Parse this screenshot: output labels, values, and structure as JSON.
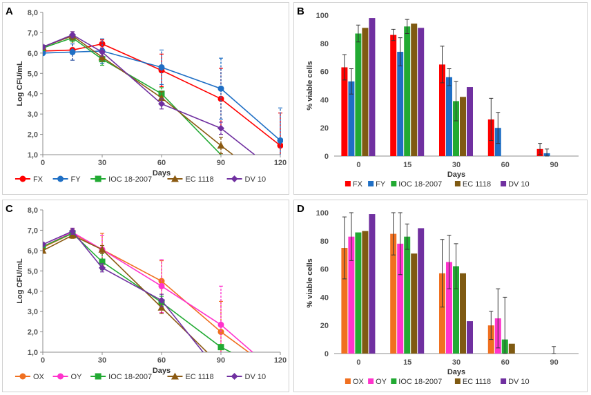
{
  "chart_data": [
    {
      "panel": "A",
      "type": "line",
      "xlabel": "Days",
      "ylabel": "Log CFU/mL",
      "xlim": [
        0,
        120
      ],
      "ylim": [
        1.0,
        8.0
      ],
      "xticks": [
        "0",
        "30",
        "60",
        "90",
        "120"
      ],
      "yticks": [
        "1,0",
        "2,0",
        "3,0",
        "4,0",
        "5,0",
        "6,0",
        "7,0",
        "8,0"
      ],
      "legend": "bottom",
      "series": [
        {
          "name": "FX",
          "color": "#ff0000",
          "marker": "circle",
          "x": [
            0,
            15,
            30,
            60,
            90,
            120
          ],
          "y": [
            6.1,
            6.15,
            6.45,
            5.15,
            3.75,
            1.45
          ],
          "err": [
            0.15,
            0.5,
            0.2,
            0.8,
            1.5,
            1.6
          ]
        },
        {
          "name": "FY",
          "color": "#1f6fc5",
          "marker": "circle",
          "x": [
            0,
            15,
            30,
            60,
            90,
            120
          ],
          "y": [
            6.0,
            6.05,
            6.1,
            5.3,
            4.25,
            1.7
          ],
          "err": [
            0.1,
            0.4,
            0.6,
            0.85,
            1.5,
            1.6
          ]
        },
        {
          "name": "IOC 18-2007",
          "color": "#22aa33",
          "marker": "square",
          "x": [
            0,
            15,
            30,
            60,
            90
          ],
          "y": [
            6.25,
            6.75,
            5.7,
            4.0,
            1.0
          ],
          "err": [
            0.1,
            0.2,
            0.3,
            0.3,
            0.0
          ]
        },
        {
          "name": "EC 1118",
          "color": "#8b5a12",
          "marker": "triangle",
          "x": [
            0,
            15,
            30,
            60,
            90,
            96
          ],
          "y": [
            6.3,
            6.85,
            5.8,
            3.8,
            1.45,
            1.0
          ],
          "err": [
            0.1,
            0.2,
            0.2,
            0.3,
            0.4,
            0.0
          ]
        },
        {
          "name": "DV 10",
          "color": "#7030a0",
          "marker": "diamond",
          "x": [
            0,
            15,
            30,
            60,
            90,
            107
          ],
          "y": [
            6.3,
            6.9,
            6.05,
            3.5,
            2.3,
            1.0
          ],
          "err": [
            0.1,
            0.15,
            0.2,
            0.25,
            0.3,
            0.0
          ]
        }
      ]
    },
    {
      "panel": "B",
      "type": "bar",
      "xlabel": "Days",
      "ylabel": "% viable cells",
      "ylim": [
        0,
        100
      ],
      "yticks": [
        "0",
        "20",
        "40",
        "60",
        "80",
        "100"
      ],
      "categories": [
        "0",
        "15",
        "30",
        "60",
        "90"
      ],
      "legend": "bottom",
      "series": [
        {
          "name": "FX",
          "color": "#ff0000",
          "values": [
            63,
            86,
            65,
            26,
            5
          ],
          "err": [
            9,
            4,
            13,
            15,
            4
          ]
        },
        {
          "name": "FY",
          "color": "#1f6fc5",
          "values": [
            53,
            74,
            56,
            20,
            2
          ],
          "err": [
            9,
            10,
            6,
            11,
            3
          ]
        },
        {
          "name": "IOC 18-2007",
          "color": "#22aa33",
          "values": [
            87,
            92,
            39,
            0,
            0
          ],
          "err": [
            6,
            5,
            14,
            0,
            0
          ]
        },
        {
          "name": "EC 1118",
          "color": "#7f5a12",
          "values": [
            91,
            94,
            42,
            0,
            0
          ],
          "err": [
            0,
            0,
            0,
            0,
            0
          ]
        },
        {
          "name": "DV 10",
          "color": "#7030a0",
          "values": [
            98,
            91,
            49,
            0,
            0
          ],
          "err": [
            0,
            0,
            0,
            0,
            0
          ]
        }
      ]
    },
    {
      "panel": "C",
      "type": "line",
      "xlabel": "Days",
      "ylabel": "Log CFU/mL",
      "xlim": [
        0,
        120
      ],
      "ylim": [
        1.0,
        8.0
      ],
      "xticks": [
        "0",
        "30",
        "60",
        "90",
        "120"
      ],
      "yticks": [
        "1,0",
        "2,0",
        "3,0",
        "4,0",
        "5,0",
        "6,0",
        "7,0",
        "8,0"
      ],
      "legend": "bottom",
      "series": [
        {
          "name": "OX",
          "color": "#f07020",
          "marker": "circle",
          "x": [
            0,
            15,
            30,
            60,
            90,
            104
          ],
          "y": [
            6.15,
            6.85,
            6.05,
            4.5,
            2.0,
            1.0
          ],
          "err": [
            0.1,
            0.2,
            0.8,
            1.0,
            1.5,
            0.0
          ]
        },
        {
          "name": "OY",
          "color": "#ff33cc",
          "marker": "circle",
          "x": [
            0,
            15,
            30,
            60,
            90,
            106
          ],
          "y": [
            6.2,
            6.9,
            6.05,
            4.25,
            2.35,
            1.0
          ],
          "err": [
            0.1,
            0.2,
            0.7,
            1.3,
            1.9,
            0.0
          ]
        },
        {
          "name": "IOC 18-2007",
          "color": "#22aa33",
          "marker": "square",
          "x": [
            0,
            15,
            30,
            60,
            90,
            95
          ],
          "y": [
            6.2,
            6.85,
            5.45,
            3.45,
            1.25,
            1.0
          ],
          "err": [
            0.1,
            0.15,
            0.4,
            0.3,
            0.1,
            0.0
          ]
        },
        {
          "name": "EC 1118",
          "color": "#8b5a12",
          "marker": "triangle",
          "x": [
            0,
            15,
            30,
            60,
            83
          ],
          "y": [
            6.0,
            6.75,
            6.05,
            3.2,
            1.0
          ],
          "err": [
            0.1,
            0.15,
            0.2,
            0.3,
            0.0
          ]
        },
        {
          "name": "DV 10",
          "color": "#7030a0",
          "marker": "diamond",
          "x": [
            0,
            15,
            30,
            60,
            81
          ],
          "y": [
            6.3,
            6.95,
            5.15,
            3.55,
            1.0
          ],
          "err": [
            0.1,
            0.15,
            0.2,
            0.3,
            0.0
          ]
        }
      ]
    },
    {
      "panel": "D",
      "type": "bar",
      "xlabel": "Days",
      "ylabel": "% viable cells",
      "ylim": [
        0,
        100
      ],
      "yticks": [
        "0",
        "20",
        "40",
        "60",
        "80",
        "100"
      ],
      "categories": [
        "0",
        "15",
        "30",
        "60",
        "90"
      ],
      "legend": "bottom",
      "series": [
        {
          "name": "OX",
          "color": "#f07020",
          "values": [
            75,
            85,
            57,
            20,
            0
          ],
          "err": [
            22,
            15,
            24,
            10,
            0
          ]
        },
        {
          "name": "OY",
          "color": "#ff33cc",
          "values": [
            83,
            78,
            65,
            25,
            0
          ],
          "err": [
            17,
            22,
            19,
            21,
            0
          ]
        },
        {
          "name": "IOC 18-2007",
          "color": "#22aa33",
          "values": [
            86,
            83,
            62,
            10,
            0
          ],
          "err": [
            0,
            9,
            16,
            30,
            5
          ]
        },
        {
          "name": "EC 1118",
          "color": "#7f5a12",
          "values": [
            87,
            71,
            57,
            7,
            0
          ],
          "err": [
            0,
            0,
            0,
            0,
            0
          ]
        },
        {
          "name": "DV 10",
          "color": "#7030a0",
          "values": [
            99,
            89,
            23,
            0,
            0
          ],
          "err": [
            0,
            0,
            0,
            0,
            0
          ]
        }
      ]
    }
  ]
}
